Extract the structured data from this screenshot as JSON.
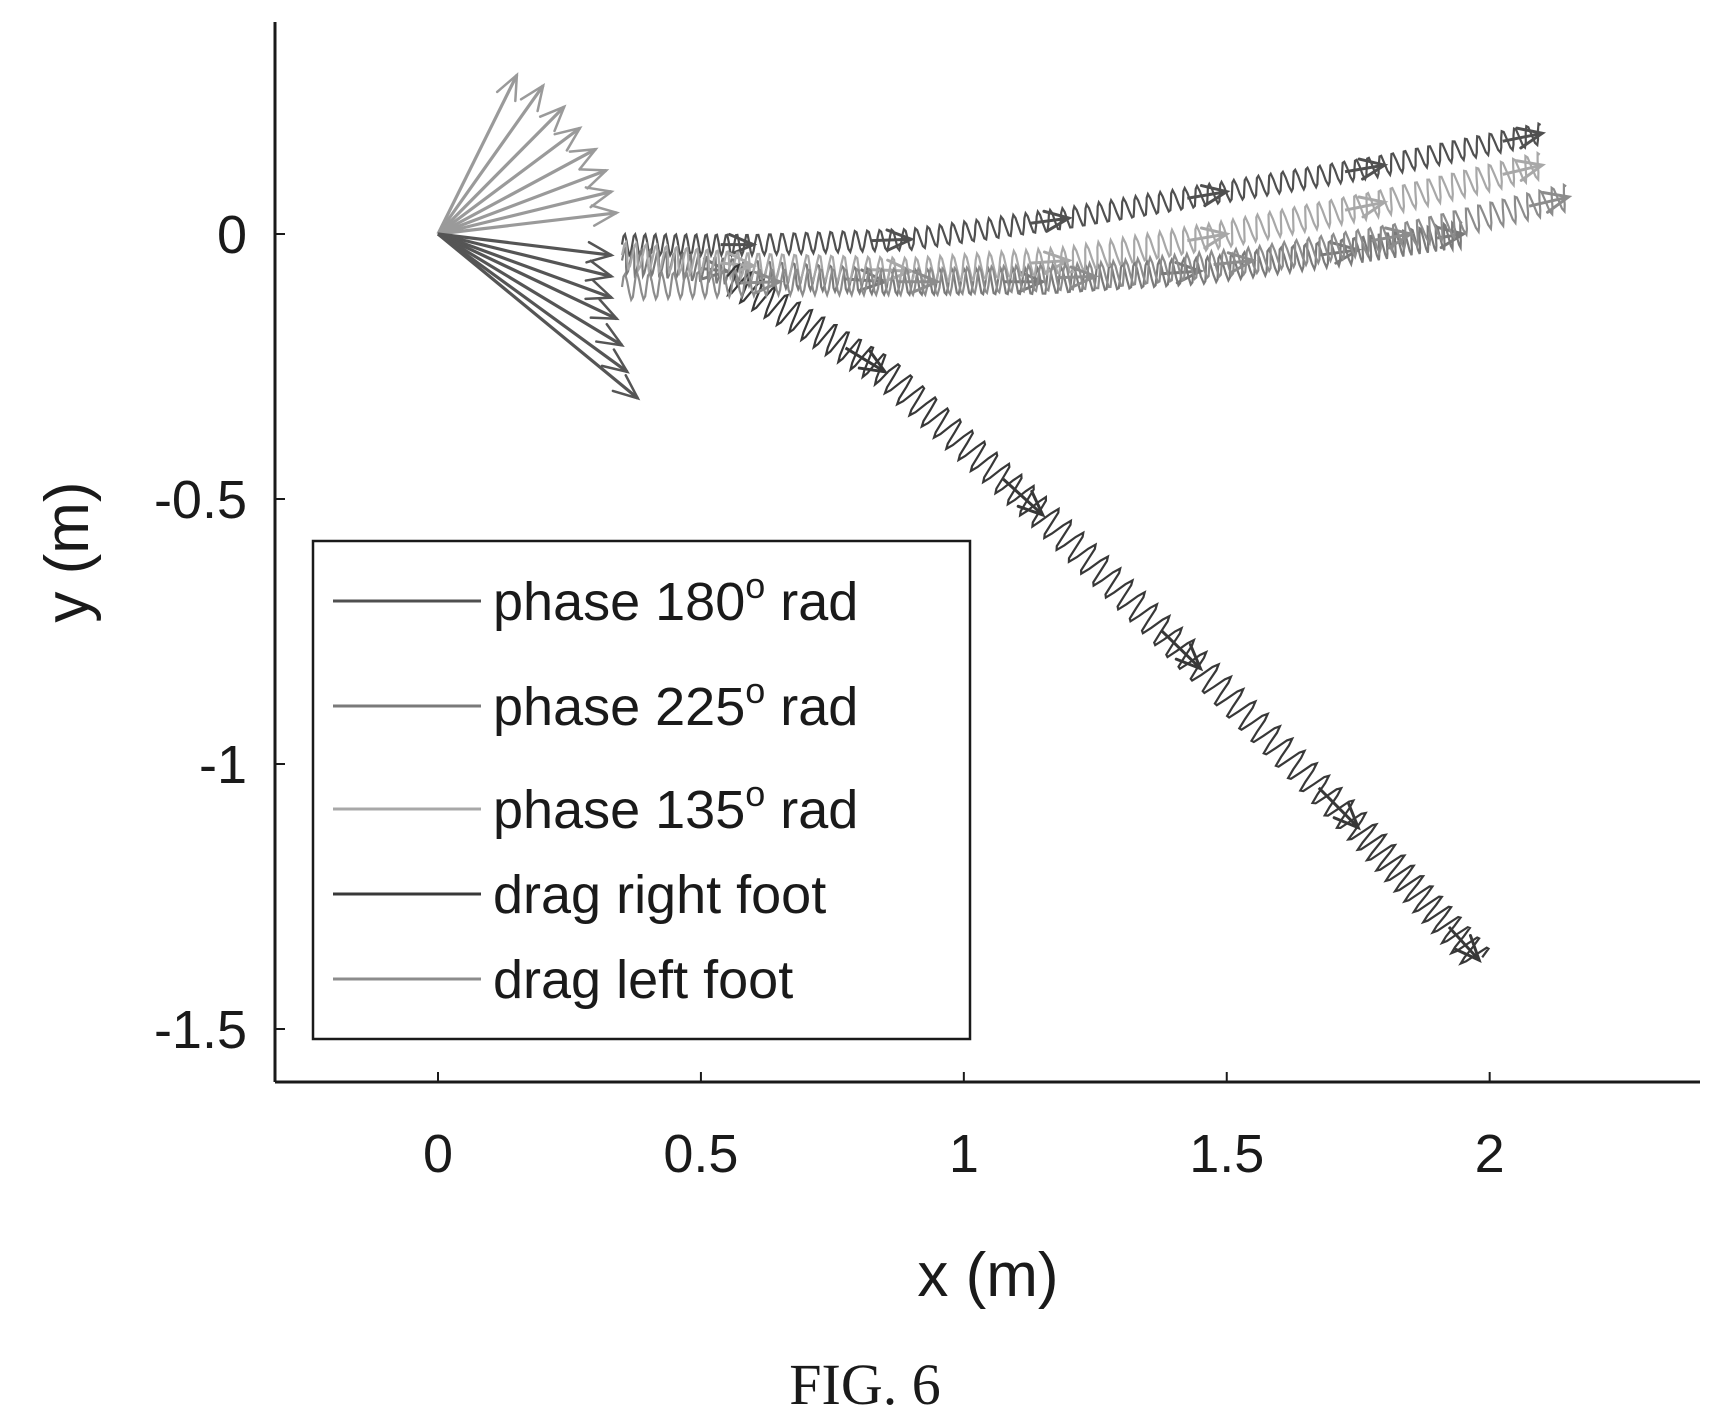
{
  "caption": "FIG. 6",
  "colors": {
    "phase_180": "#505050",
    "phase_225": "#7a7a7a",
    "phase_135": "#a8a8a8",
    "drag_right": "#383838",
    "drag_left": "#8c8c8c",
    "axis": "#1a1a1a"
  },
  "chart_data": {
    "type": "line",
    "xlabel": "x (m)",
    "ylabel": "y (m)",
    "xlim": [
      -0.31,
      2.4
    ],
    "ylim": [
      -1.6,
      0.4
    ],
    "xticks": [
      0,
      0.5,
      1,
      1.5,
      2
    ],
    "xtick_labels": [
      "0",
      "0.5",
      "1",
      "1.5",
      "2"
    ],
    "yticks": [
      0,
      -0.5,
      -1,
      -1.5
    ],
    "ytick_labels": [
      "0",
      "-0.5",
      "-1",
      "-1.5"
    ],
    "grid": false,
    "legend_position": "bottom-left",
    "series": [
      {
        "name": "phase 180° rad",
        "color": "#505050",
        "oscillation_amplitude": 0.02,
        "x": [
          0.35,
          0.6,
          0.9,
          1.2,
          1.5,
          1.8,
          2.1
        ],
        "y": [
          -0.02,
          -0.02,
          -0.01,
          0.03,
          0.08,
          0.13,
          0.19
        ]
      },
      {
        "name": "phase 225° rad",
        "color": "#7a7a7a",
        "oscillation_amplitude": 0.025,
        "x": [
          0.35,
          0.55,
          0.85,
          1.15,
          1.45,
          1.75,
          1.95
        ],
        "y": [
          -0.05,
          -0.07,
          -0.09,
          -0.09,
          -0.07,
          -0.03,
          0.0
        ]
      },
      {
        "name": "phase 135° rad",
        "color": "#a8a8a8",
        "oscillation_amplitude": 0.025,
        "x": [
          0.35,
          0.6,
          0.9,
          1.2,
          1.5,
          1.8,
          2.1
        ],
        "y": [
          -0.04,
          -0.06,
          -0.07,
          -0.05,
          0.0,
          0.06,
          0.13
        ]
      },
      {
        "name": "drag right foot",
        "color": "#383838",
        "oscillation_amplitude": 0.03,
        "x": [
          0.55,
          0.85,
          1.15,
          1.45,
          1.75,
          1.98
        ],
        "y": [
          -0.08,
          -0.26,
          -0.53,
          -0.82,
          -1.12,
          -1.37
        ]
      },
      {
        "name": "drag left foot",
        "color": "#8c8c8c",
        "oscillation_amplitude": 0.025,
        "x": [
          0.35,
          0.65,
          0.95,
          1.25,
          1.55,
          1.85,
          2.15
        ],
        "y": [
          -0.1,
          -0.09,
          -0.09,
          -0.08,
          -0.05,
          0.0,
          0.07
        ]
      }
    ],
    "legend": [
      {
        "label_main": "phase 180",
        "label_sup": "o",
        "label_tail": " rad",
        "color": "#505050"
      },
      {
        "label_main": "phase 225",
        "label_sup": "o",
        "label_tail": " rad",
        "color": "#7a7a7a"
      },
      {
        "label_main": "phase 135",
        "label_sup": "o",
        "label_tail": " rad",
        "color": "#a8a8a8"
      },
      {
        "label_main": "drag right foot",
        "label_sup": "",
        "label_tail": "",
        "color": "#383838"
      },
      {
        "label_main": "drag left foot",
        "label_sup": "",
        "label_tail": "",
        "color": "#8c8c8c"
      }
    ],
    "arrow_fans": [
      {
        "name": "upper fan",
        "color": "#9a9a9a",
        "origin": [
          0.0,
          0.0
        ],
        "tips": [
          [
            0.15,
            0.3
          ],
          [
            0.2,
            0.28
          ],
          [
            0.24,
            0.24
          ],
          [
            0.27,
            0.2
          ],
          [
            0.3,
            0.16
          ],
          [
            0.32,
            0.12
          ],
          [
            0.33,
            0.08
          ],
          [
            0.34,
            0.04
          ]
        ]
      },
      {
        "name": "lower fan",
        "color": "#555555",
        "origin": [
          0.0,
          0.0
        ],
        "tips": [
          [
            0.33,
            -0.04
          ],
          [
            0.33,
            -0.08
          ],
          [
            0.33,
            -0.12
          ],
          [
            0.34,
            -0.16
          ],
          [
            0.35,
            -0.21
          ],
          [
            0.36,
            -0.26
          ],
          [
            0.38,
            -0.31
          ]
        ]
      }
    ]
  }
}
